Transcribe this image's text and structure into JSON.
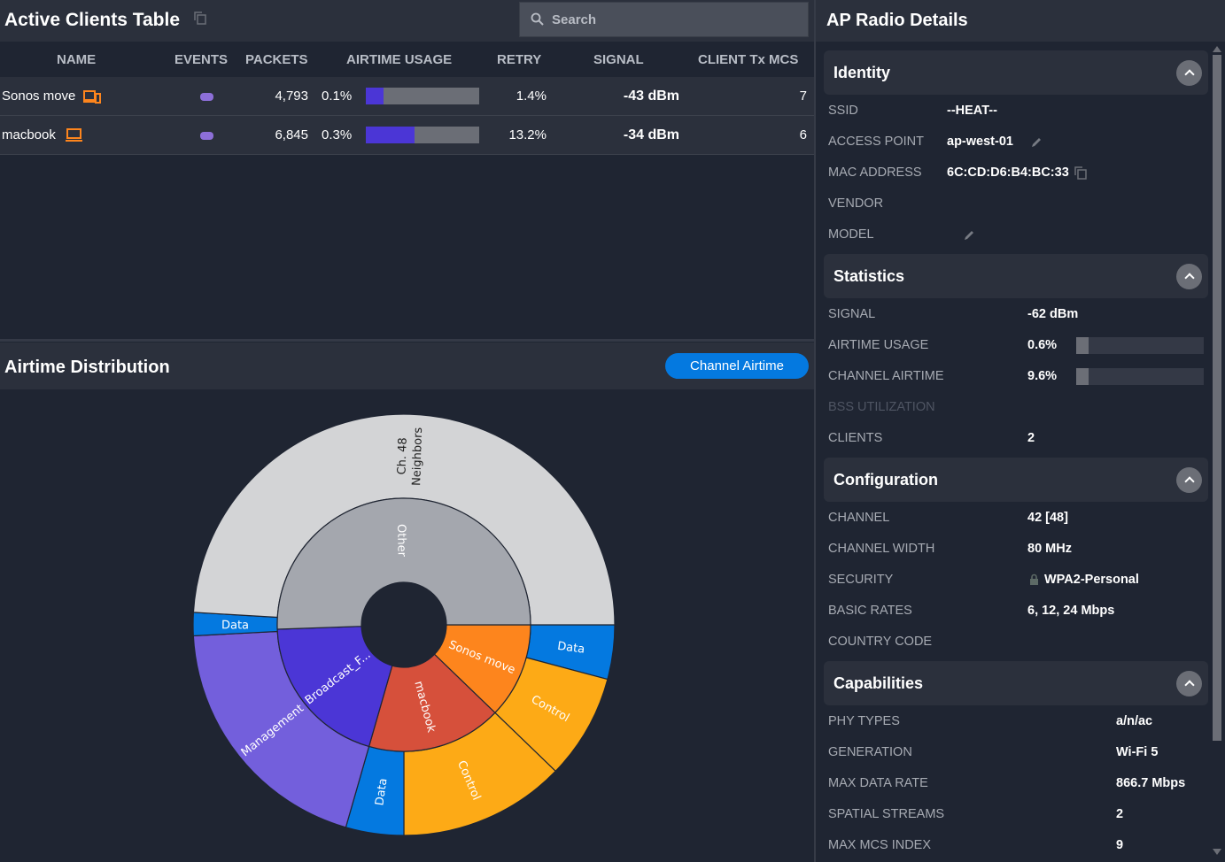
{
  "clients": {
    "title": "Active Clients Table",
    "search_placeholder": "Search",
    "columns": [
      "NAME",
      "EVENTS",
      "PACKETS",
      "AIRTIME USAGE",
      "RETRY",
      "SIGNAL",
      "CLIENT Tx MCS"
    ],
    "rows": [
      {
        "name": "Sonos move",
        "device_icon": "speaker-device-icon",
        "packets": "4,793",
        "airtime": "0.1%",
        "airtime_bar_fill": 0.16,
        "retry": "1.4%",
        "signal": "-43 dBm",
        "mcs": "7"
      },
      {
        "name": "macbook",
        "device_icon": "laptop-icon",
        "packets": "6,845",
        "airtime": "0.3%",
        "airtime_bar_fill": 0.43,
        "retry": "13.2%",
        "signal": "-34 dBm",
        "mcs": "6"
      }
    ]
  },
  "distribution": {
    "title": "Airtime Distribution",
    "button": "Channel Airtime"
  },
  "chart_data": {
    "type": "sunburst",
    "inner": [
      {
        "label": "Sonos move",
        "value": 44,
        "color": "#fd851d"
      },
      {
        "label": "macbook",
        "value": 62,
        "color": "#d6503b"
      },
      {
        "label": "Broadcast_F...",
        "value": 72,
        "color": "#4b36d6"
      },
      {
        "label": "Other",
        "value": 182,
        "color": "#a4a7ae"
      }
    ],
    "outer": [
      {
        "label": "Data",
        "parent": "Sonos move",
        "value": 15,
        "color": "#0479e0"
      },
      {
        "label": "Control",
        "parent": "Sonos move",
        "value": 29,
        "color": "#fdaa16"
      },
      {
        "label": "Control",
        "parent": "macbook",
        "value": 46,
        "color": "#fdaa16"
      },
      {
        "label": "Data",
        "parent": "macbook",
        "value": 16,
        "color": "#0479e0"
      },
      {
        "label": "Management",
        "parent": "Broadcast_F...",
        "value": 71,
        "color": "#735fdc"
      },
      {
        "label": "Data",
        "parent": "Broadcast_F...",
        "value": 6.4,
        "color": "#0479e0"
      },
      {
        "label": "Ch. 48|Neighbors",
        "parent": "Other",
        "value": 176.6,
        "color": "#d3d4d6"
      }
    ]
  },
  "ap": {
    "title": "AP Radio Details",
    "sections": {
      "identity": {
        "title": "Identity",
        "items": [
          [
            "SSID",
            "--HEAT--"
          ],
          [
            "ACCESS POINT",
            "ap-west-01"
          ],
          [
            "MAC ADDRESS",
            "6C:CD:D6:B4:BC:33"
          ],
          [
            "VENDOR",
            ""
          ],
          [
            "MODEL",
            ""
          ]
        ]
      },
      "statistics": {
        "title": "Statistics",
        "items": [
          [
            "SIGNAL",
            "-62 dBm"
          ],
          [
            "AIRTIME USAGE",
            "0.6%"
          ],
          [
            "CHANNEL AIRTIME",
            "9.6%"
          ],
          [
            "BSS UTILIZATION",
            ""
          ],
          [
            "CLIENTS",
            "2"
          ]
        ],
        "airtime_usage_fill": 0.096,
        "channel_airtime_fill": 0.096
      },
      "configuration": {
        "title": "Configuration",
        "items": [
          [
            "CHANNEL",
            "42 [48]"
          ],
          [
            "CHANNEL WIDTH",
            "80 MHz"
          ],
          [
            "SECURITY",
            "WPA2-Personal"
          ],
          [
            "BASIC RATES",
            "6, 12, 24 Mbps"
          ],
          [
            "COUNTRY CODE",
            ""
          ]
        ]
      },
      "capabilities": {
        "title": "Capabilities",
        "items": [
          [
            "PHY TYPES",
            "a/n/ac"
          ],
          [
            "GENERATION",
            "Wi-Fi 5"
          ],
          [
            "MAX DATA RATE",
            "866.7 Mbps"
          ],
          [
            "SPATIAL STREAMS",
            "2"
          ],
          [
            "MAX MCS INDEX",
            "9"
          ]
        ]
      }
    }
  }
}
